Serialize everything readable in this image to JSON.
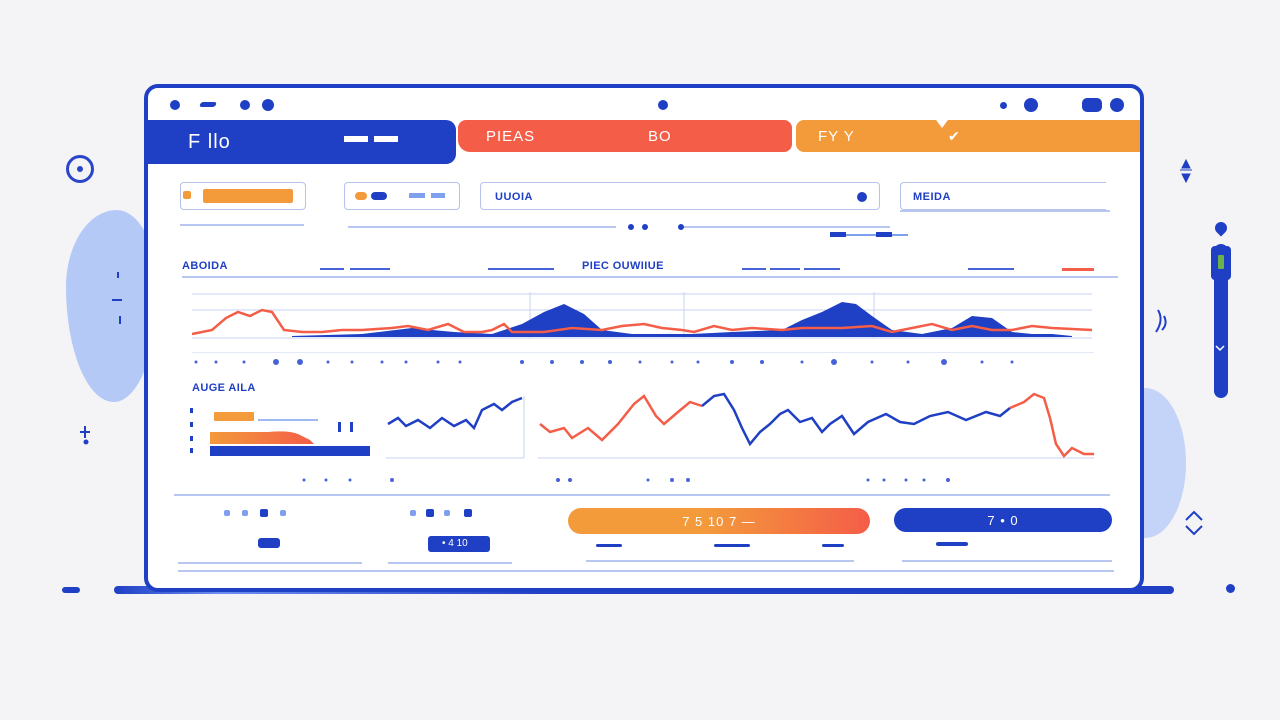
{
  "window": {
    "tabs": [
      {
        "label": "F llo"
      },
      {
        "label": "PIEAS",
        "sub": "BO"
      },
      {
        "label": "FY Y",
        "sub": "✔"
      }
    ]
  },
  "controls": {
    "search_label": "UUOIA",
    "filter_label": "MEIDA"
  },
  "sections": {
    "left_title": "ABOIDA",
    "center_title": "PIEC OUWIIUE",
    "lower_title": "AUGE AILA"
  },
  "buttons": {
    "primary_label": "7 5 10  7 —",
    "secondary_label": "7 • 0",
    "small_label": "• 4 10"
  },
  "icons": [
    "ring-icon",
    "pin-icon",
    "slider-icon",
    "radio-dot-icon",
    "chevron-icon"
  ],
  "colors": {
    "primary": "#1f3fc4",
    "accent_red": "#f45d48",
    "accent_orange": "#f39a3b",
    "grid": "#c8d3f3"
  }
}
